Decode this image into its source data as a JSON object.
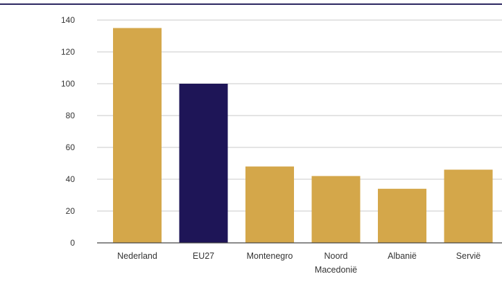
{
  "chart_data": {
    "type": "bar",
    "title": "",
    "xlabel": "",
    "ylabel": "",
    "categories": [
      [
        "Nederland"
      ],
      [
        "EU27"
      ],
      [
        "Montenegro"
      ],
      [
        "Noord",
        "Macedonië"
      ],
      [
        "Albanië"
      ],
      [
        "Servië"
      ]
    ],
    "values": [
      135,
      100,
      48,
      42,
      34,
      46
    ],
    "highlight_index": 1,
    "ylim": [
      0,
      140
    ],
    "yticks": [
      0,
      20,
      40,
      60,
      80,
      100,
      120,
      140
    ],
    "grid": true,
    "legend": "none"
  },
  "colors": {
    "bar": "#D4A74A",
    "highlight": "#1E1557",
    "top_rule": "#2A2560",
    "grid": "#C8C8C8",
    "axis": "#444444",
    "text": "#333333"
  }
}
